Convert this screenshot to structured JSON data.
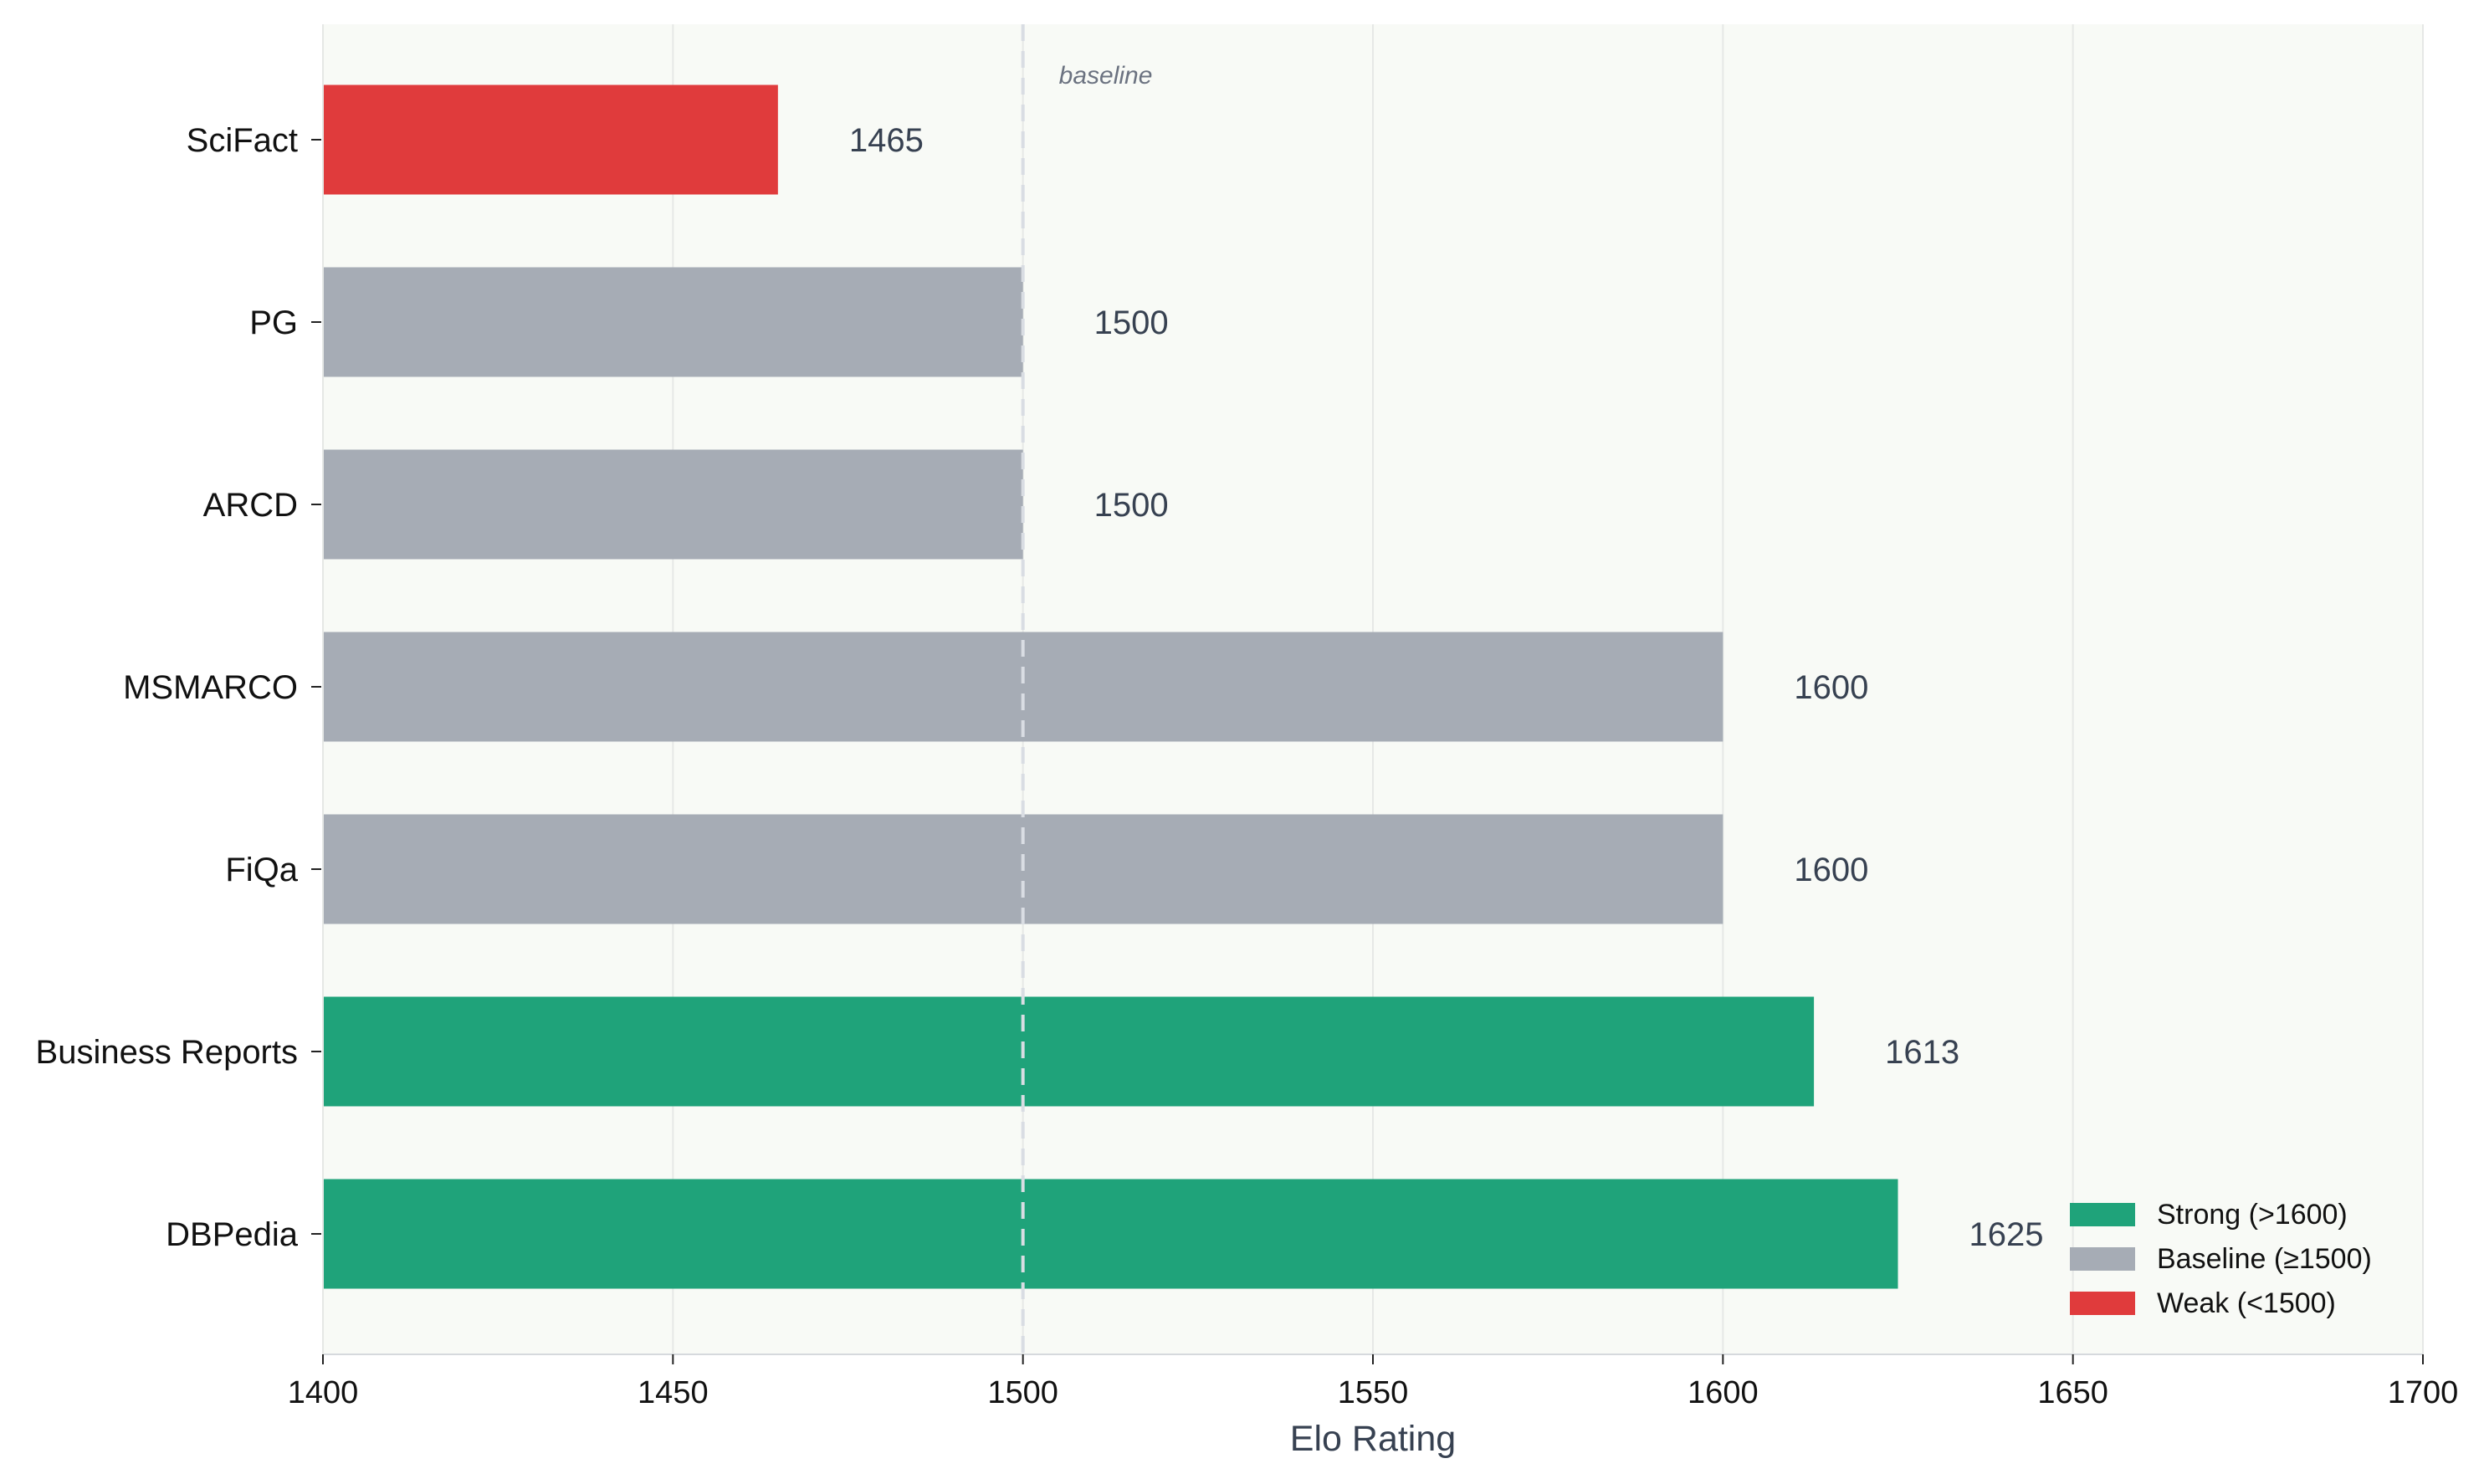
{
  "chart_data": {
    "type": "bar",
    "orientation": "horizontal",
    "categories": [
      "SciFact",
      "PG",
      "ARCD",
      "MSMARCO",
      "FiQa",
      "Business Reports",
      "DBPedia"
    ],
    "values": [
      1465,
      1500,
      1500,
      1600,
      1600,
      1613,
      1625
    ],
    "value_labels": [
      "1465",
      "1500",
      "1500",
      "1600",
      "1600",
      "1613",
      "1625"
    ],
    "xlabel": "Elo Rating",
    "ylabel": "",
    "title": "",
    "xlim": [
      1400,
      1700
    ],
    "x_ticks": [
      1400,
      1450,
      1500,
      1550,
      1600,
      1650,
      1700
    ],
    "x_tick_labels": [
      "1400",
      "1450",
      "1500",
      "1550",
      "1600",
      "1650",
      "1700"
    ],
    "grid": "vertical",
    "reference_line": {
      "value": 1500,
      "label": "baseline",
      "style": "dashed"
    },
    "legend": {
      "placement": "bottom-right",
      "entries": [
        {
          "label": "Strong (>1600)",
          "color": "#1fa37a"
        },
        {
          "label": "Baseline (≥1500)",
          "color": "#a6acb5"
        },
        {
          "label": "Weak (<1500)",
          "color": "#e03b3c"
        }
      ]
    },
    "colors": {
      "strong": "#1fa37a",
      "baseline": "#a6acb5",
      "weak": "#e03b3c",
      "plot_background": "#f8faf6",
      "grid": "#e6e8e6",
      "reference_line": "#d9dde3",
      "value_label": "#374151",
      "axis_label": "#374151",
      "reference_label": "#6b7280"
    }
  }
}
